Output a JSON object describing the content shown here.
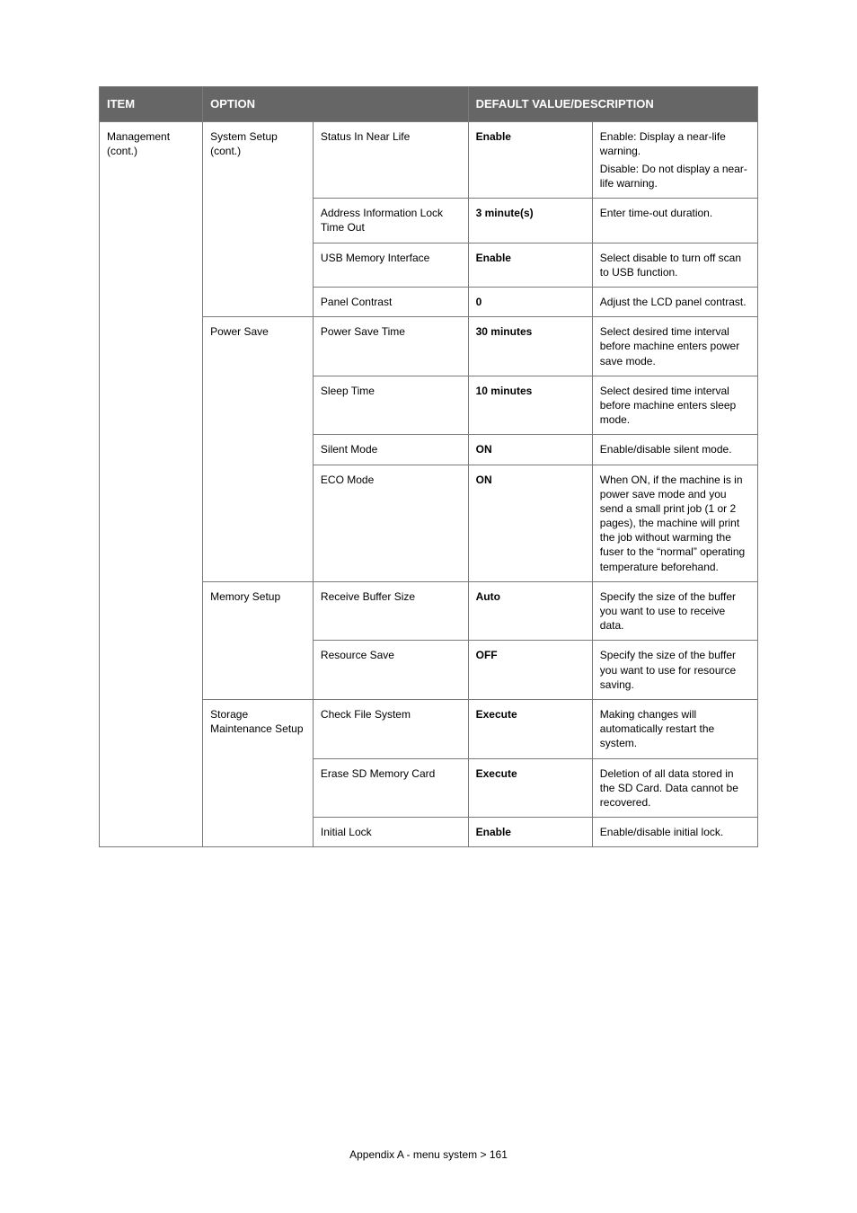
{
  "header": {
    "item": "ITEM",
    "option": "OPTION",
    "default": "DEFAULT VALUE/DESCRIPTION"
  },
  "col1": {
    "management": "Management (cont.)"
  },
  "groups": {
    "system_setup": "System Setup (cont.)",
    "power_save": "Power Save",
    "memory_setup": "Memory Setup",
    "storage_maint": "Storage Maintenance Setup"
  },
  "rows": {
    "status_near_life": {
      "opt": "Status In Near Life",
      "val": "Enable",
      "desc1": "Enable: Display a near-life warning.",
      "desc2": "Disable: Do not display a near-life warning."
    },
    "addr_lock": {
      "opt": "Address Information Lock Time Out",
      "val": "3 minute(s)",
      "desc": "Enter time-out duration."
    },
    "usb_mem": {
      "opt": "USB Memory Interface",
      "val": "Enable",
      "desc": "Select disable to turn off scan to USB function."
    },
    "panel_contrast": {
      "opt": "Panel Contrast",
      "val": "0",
      "desc": "Adjust the LCD panel contrast."
    },
    "pst": {
      "opt": "Power Save Time",
      "val": "30 minutes",
      "desc": "Select desired time interval before machine enters power save mode."
    },
    "sleep": {
      "opt": "Sleep Time",
      "val": "10 minutes",
      "desc": "Select desired time interval before machine enters sleep mode."
    },
    "silent": {
      "opt": "Silent Mode",
      "val": "ON",
      "desc": "Enable/disable silent mode."
    },
    "eco": {
      "opt": "ECO Mode",
      "val": "ON",
      "desc": "When ON, if the machine is in power save mode and you send a small print job (1 or 2 pages), the machine will print the job without warming the fuser to the “normal” operating temperature beforehand."
    },
    "rbs": {
      "opt": "Receive Buffer Size",
      "val": "Auto",
      "desc": "Specify the size of the buffer you want to use to receive data."
    },
    "rsave": {
      "opt": "Resource Save",
      "val": "OFF",
      "desc": "Specify the size of the buffer you want to use for resource saving."
    },
    "cfs": {
      "opt": "Check File System",
      "val": "Execute",
      "desc": "Making changes will automatically restart the system."
    },
    "erase_sd": {
      "opt": "Erase SD Memory Card",
      "val": "Execute",
      "desc": "Deletion of all data stored in the SD Card. Data cannot be recovered."
    },
    "initial_lock": {
      "opt": "Initial Lock",
      "val": "Enable",
      "desc": "Enable/disable initial lock."
    }
  },
  "footer": "Appendix A - menu system > 161"
}
